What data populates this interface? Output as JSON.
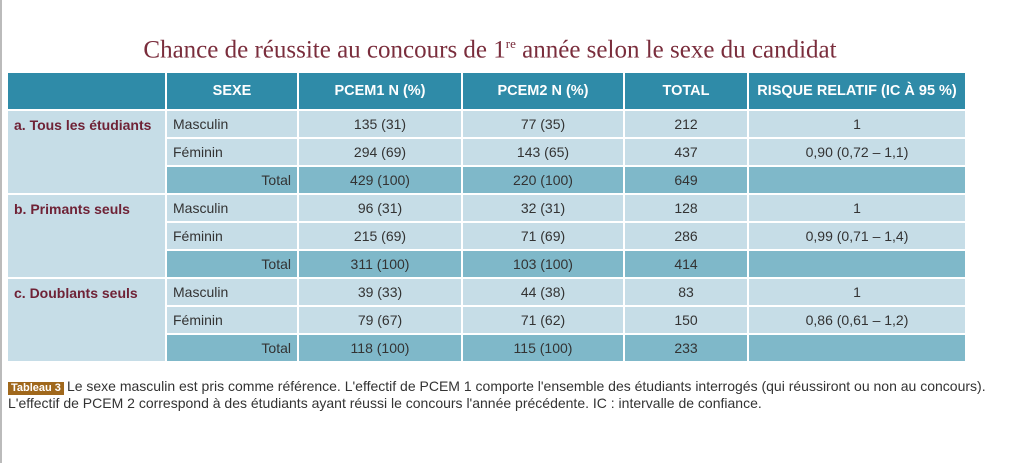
{
  "title": {
    "main": "Chance de réussite au concours de 1",
    "sup": "re",
    "rest": " année selon le sexe du candidat"
  },
  "headers": [
    "",
    "SEXE",
    "PCEM1  N (%)",
    "PCEM2  N (%)",
    "TOTAL",
    "RISQUE RELATIF (IC À 95 %)"
  ],
  "groups": [
    {
      "label": "a. Tous les étudiants",
      "rows": [
        [
          "Masculin",
          "135 (31)",
          "77 (35)",
          "212",
          "1"
        ],
        [
          "Féminin",
          "294 (69)",
          "143 (65)",
          "437",
          "0,90 (0,72 – 1,1)"
        ],
        [
          "Total",
          "429 (100)",
          "220 (100)",
          "649",
          ""
        ]
      ]
    },
    {
      "label": "b. Primants seuls",
      "rows": [
        [
          "Masculin",
          "96 (31)",
          "32 (31)",
          "128",
          "1"
        ],
        [
          "Féminin",
          "215 (69)",
          "71 (69)",
          "286",
          "0,99 (0,71 – 1,4)"
        ],
        [
          "Total",
          "311 (100)",
          "103 (100)",
          "414",
          ""
        ]
      ]
    },
    {
      "label": "c. Doublants seuls",
      "rows": [
        [
          "Masculin",
          "39 (33)",
          "44 (38)",
          "83",
          "1"
        ],
        [
          "Féminin",
          "79 (67)",
          "71 (62)",
          "150",
          "0,86 (0,61 – 1,2)"
        ],
        [
          "Total",
          "118 (100)",
          "115 (100)",
          "233",
          ""
        ]
      ]
    }
  ],
  "caption": {
    "badge": "Tableau 3",
    "text": "Le sexe masculin est pris comme référence. L'effectif de PCEM 1 comporte l'ensemble des étudiants interrogés (qui réussiront ou non au concours). L'effectif de PCEM 2 correspond à des étudiants ayant réussi le concours l'année précédente. IC : intervalle de confiance."
  }
}
